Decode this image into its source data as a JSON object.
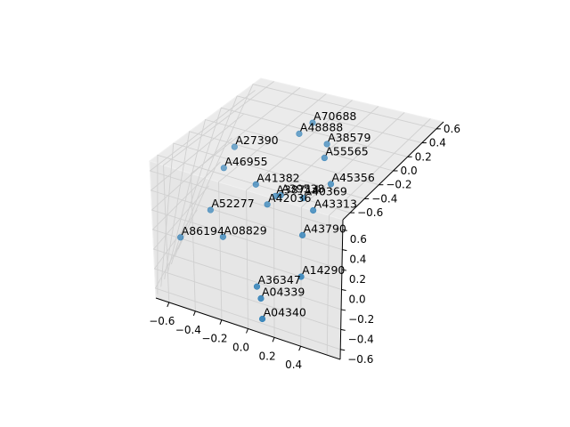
{
  "chart_data": {
    "type": "scatter",
    "dims": 3,
    "title": "",
    "xlabel": "",
    "ylabel": "",
    "zlabel": "",
    "grid": true,
    "marker_color": "#1f77b4",
    "pane_colors": [
      "#f2f2f2",
      "#ebebeb",
      "#e6e6e6"
    ],
    "x_ticks": [
      "−0.6",
      "−0.4",
      "−0.2",
      "0.0",
      "0.2",
      "0.4"
    ],
    "y_ticks": [
      "−0.6",
      "−0.4",
      "−0.2",
      "0.0",
      "0.2",
      "0.4",
      "0.6"
    ],
    "z_ticks": [
      "−0.6",
      "−0.4",
      "−0.2",
      "0.0",
      "0.2",
      "0.4",
      "0.6"
    ],
    "points": [
      {
        "label": "A70688",
        "x": -0.15,
        "y": 0.55,
        "z": 0.55
      },
      {
        "label": "A48888",
        "x": -0.18,
        "y": 0.5,
        "z": 0.45
      },
      {
        "label": "A38579",
        "x": 0.1,
        "y": 0.6,
        "z": 0.25
      },
      {
        "label": "A55565",
        "x": 0.15,
        "y": 0.55,
        "z": 0.15
      },
      {
        "label": "A27390",
        "x": -0.55,
        "y": 0.35,
        "z": 0.3
      },
      {
        "label": "A41382",
        "x": -0.3,
        "y": 0.1,
        "z": 0.3
      },
      {
        "label": "A45356",
        "x": 0.3,
        "y": 0.45,
        "z": 0.0
      },
      {
        "label": "A40369",
        "x": 0.15,
        "y": 0.3,
        "z": -0.05
      },
      {
        "label": "A46955",
        "x": -0.5,
        "y": 0.3,
        "z": 0.05
      },
      {
        "label": "A38714",
        "x": -0.05,
        "y": 0.25,
        "z": -0.05
      },
      {
        "label": "A39538",
        "x": 0.0,
        "y": 0.3,
        "z": -0.1
      },
      {
        "label": "A42036",
        "x": -0.05,
        "y": 0.25,
        "z": -0.2
      },
      {
        "label": "A52277",
        "x": -0.45,
        "y": 0.05,
        "z": -0.2
      },
      {
        "label": "A43313",
        "x": 0.3,
        "y": 0.35,
        "z": -0.25
      },
      {
        "label": "A08829",
        "x": -0.3,
        "y": -0.1,
        "z": -0.3
      },
      {
        "label": "A86194",
        "x": -0.6,
        "y": -0.2,
        "z": -0.35
      },
      {
        "label": "A43790",
        "x": 0.3,
        "y": 0.2,
        "z": -0.4
      },
      {
        "label": "A14290",
        "x": 0.4,
        "y": 0.0,
        "z": -0.7
      },
      {
        "label": "A36347",
        "x": 0.05,
        "y": -0.3,
        "z": -0.6
      },
      {
        "label": "A04339",
        "x": 0.1,
        "y": -0.35,
        "z": -0.7
      },
      {
        "label": "A04340",
        "x": 0.1,
        "y": -0.6,
        "z": -0.6
      }
    ]
  }
}
